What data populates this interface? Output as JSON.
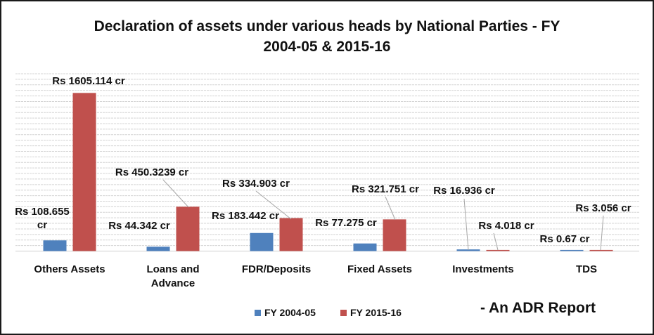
{
  "chart_data": {
    "type": "bar",
    "title_lines": [
      "Declaration of assets under various heads by National Parties - FY",
      "2004-05 & 2015-16"
    ],
    "categories": [
      [
        "Others Assets"
      ],
      [
        "Loans and",
        "Advance"
      ],
      [
        "FDR/Deposits"
      ],
      [
        "Fixed Assets"
      ],
      [
        "Investments"
      ],
      [
        "TDS"
      ]
    ],
    "series": [
      {
        "name": "FY 2004-05",
        "color": "#4f81bd",
        "values": [
          108.655,
          44.342,
          183.442,
          77.275,
          16.936,
          0.67
        ],
        "labels": [
          [
            "Rs 108.655",
            "cr"
          ],
          [
            "Rs 44.342 cr"
          ],
          [
            "Rs 183.442 cr"
          ],
          [
            "Rs 77.275 cr"
          ],
          [
            "Rs 16.936 cr"
          ],
          [
            "Rs 0.67 cr"
          ]
        ]
      },
      {
        "name": "FY 2015-16",
        "color": "#c0504d",
        "values": [
          1605.114,
          450.3239,
          334.903,
          321.751,
          4.018,
          3.056
        ],
        "labels": [
          [
            "Rs 1605.114 cr"
          ],
          [
            "Rs 450.3239 cr"
          ],
          [
            "Rs 334.903 cr"
          ],
          [
            "Rs 321.751 cr"
          ],
          [
            "Rs  4.018 cr"
          ],
          [
            "Rs 3.056 cr"
          ]
        ]
      }
    ],
    "ylim": [
      0,
      1800
    ],
    "grid": true,
    "legend_position": "bottom",
    "annotation": "- An ADR Report"
  }
}
